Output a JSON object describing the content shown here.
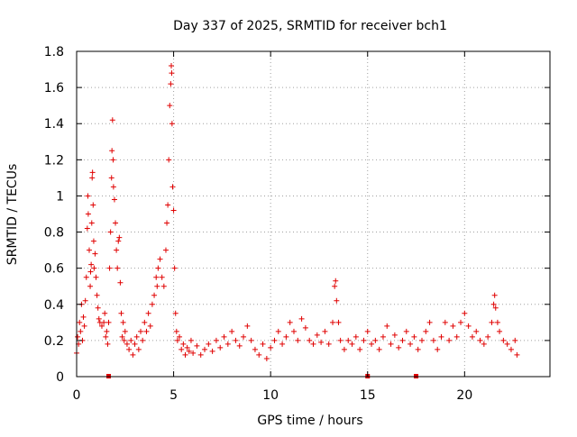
{
  "chart_data": {
    "type": "scatter",
    "title": "Day 337 of 2025, SRMTID for receiver bch1",
    "xlabel": "GPS time / hours",
    "ylabel": "SRMTID / TECUs",
    "xlim": [
      0,
      24.4
    ],
    "ylim": [
      0,
      1.8
    ],
    "xticks": [
      0,
      5,
      10,
      15,
      20
    ],
    "xtick_labels": [
      "0",
      "5",
      "10",
      "15",
      "20"
    ],
    "yticks": [
      0,
      0.2,
      0.4,
      0.6,
      0.8,
      1.0,
      1.2,
      1.4,
      1.6,
      1.8
    ],
    "ytick_labels": [
      "0",
      "0.2",
      "0.4",
      "0.6",
      "0.8",
      "1",
      "1.2",
      "1.4",
      "1.6",
      "1.8"
    ],
    "grid": true,
    "marker": "+",
    "color": "#e00000",
    "zero_markers_x": [
      1.65,
      15.0,
      17.5
    ],
    "series": [
      {
        "name": "SRMTID",
        "points": [
          [
            0.0,
            0.13
          ],
          [
            0.05,
            0.22
          ],
          [
            0.1,
            0.18
          ],
          [
            0.15,
            0.3
          ],
          [
            0.2,
            0.25
          ],
          [
            0.25,
            0.4
          ],
          [
            0.3,
            0.2
          ],
          [
            0.35,
            0.33
          ],
          [
            0.4,
            0.28
          ],
          [
            0.45,
            0.42
          ],
          [
            0.5,
            0.55
          ],
          [
            0.55,
            0.82
          ],
          [
            0.58,
            1.0
          ],
          [
            0.6,
            0.9
          ],
          [
            0.65,
            0.7
          ],
          [
            0.7,
            0.5
          ],
          [
            0.72,
            0.58
          ],
          [
            0.75,
            0.62
          ],
          [
            0.78,
            0.85
          ],
          [
            0.8,
            1.1
          ],
          [
            0.82,
            1.13
          ],
          [
            0.85,
            0.95
          ],
          [
            0.88,
            0.75
          ],
          [
            0.9,
            0.6
          ],
          [
            0.95,
            0.68
          ],
          [
            1.0,
            0.55
          ],
          [
            1.05,
            0.45
          ],
          [
            1.1,
            0.38
          ],
          [
            1.15,
            0.32
          ],
          [
            1.2,
            0.3
          ],
          [
            1.3,
            0.28
          ],
          [
            1.4,
            0.3
          ],
          [
            1.45,
            0.35
          ],
          [
            1.5,
            0.22
          ],
          [
            1.55,
            0.25
          ],
          [
            1.6,
            0.18
          ],
          [
            1.65,
            0.3
          ],
          [
            1.7,
            0.6
          ],
          [
            1.75,
            0.8
          ],
          [
            1.8,
            1.1
          ],
          [
            1.82,
            1.25
          ],
          [
            1.85,
            1.42
          ],
          [
            1.88,
            1.2
          ],
          [
            1.9,
            1.05
          ],
          [
            1.95,
            0.98
          ],
          [
            2.0,
            0.85
          ],
          [
            2.05,
            0.7
          ],
          [
            2.1,
            0.6
          ],
          [
            2.15,
            0.75
          ],
          [
            2.2,
            0.77
          ],
          [
            2.25,
            0.52
          ],
          [
            2.3,
            0.35
          ],
          [
            2.35,
            0.22
          ],
          [
            2.4,
            0.3
          ],
          [
            2.45,
            0.2
          ],
          [
            2.5,
            0.25
          ],
          [
            2.6,
            0.18
          ],
          [
            2.7,
            0.15
          ],
          [
            2.8,
            0.2
          ],
          [
            2.9,
            0.12
          ],
          [
            3.0,
            0.18
          ],
          [
            3.1,
            0.22
          ],
          [
            3.2,
            0.15
          ],
          [
            3.3,
            0.25
          ],
          [
            3.4,
            0.2
          ],
          [
            3.5,
            0.3
          ],
          [
            3.6,
            0.25
          ],
          [
            3.7,
            0.35
          ],
          [
            3.8,
            0.28
          ],
          [
            3.9,
            0.4
          ],
          [
            4.0,
            0.45
          ],
          [
            4.1,
            0.55
          ],
          [
            4.15,
            0.5
          ],
          [
            4.2,
            0.6
          ],
          [
            4.3,
            0.65
          ],
          [
            4.4,
            0.55
          ],
          [
            4.5,
            0.5
          ],
          [
            4.6,
            0.7
          ],
          [
            4.65,
            0.85
          ],
          [
            4.7,
            0.95
          ],
          [
            4.75,
            1.2
          ],
          [
            4.8,
            1.5
          ],
          [
            4.85,
            1.62
          ],
          [
            4.88,
            1.72
          ],
          [
            4.9,
            1.68
          ],
          [
            4.92,
            1.4
          ],
          [
            4.95,
            1.05
          ],
          [
            5.0,
            0.92
          ],
          [
            5.05,
            0.6
          ],
          [
            5.1,
            0.35
          ],
          [
            5.15,
            0.25
          ],
          [
            5.2,
            0.2
          ],
          [
            5.3,
            0.22
          ],
          [
            5.4,
            0.15
          ],
          [
            5.5,
            0.18
          ],
          [
            5.6,
            0.12
          ],
          [
            5.7,
            0.16
          ],
          [
            5.8,
            0.14
          ],
          [
            5.9,
            0.2
          ],
          [
            6.0,
            0.13
          ],
          [
            6.2,
            0.17
          ],
          [
            6.4,
            0.12
          ],
          [
            6.6,
            0.15
          ],
          [
            6.8,
            0.18
          ],
          [
            7.0,
            0.14
          ],
          [
            7.2,
            0.2
          ],
          [
            7.4,
            0.16
          ],
          [
            7.6,
            0.22
          ],
          [
            7.8,
            0.18
          ],
          [
            8.0,
            0.25
          ],
          [
            8.2,
            0.2
          ],
          [
            8.4,
            0.17
          ],
          [
            8.6,
            0.22
          ],
          [
            8.8,
            0.28
          ],
          [
            9.0,
            0.2
          ],
          [
            9.2,
            0.15
          ],
          [
            9.4,
            0.12
          ],
          [
            9.6,
            0.18
          ],
          [
            9.8,
            0.1
          ],
          [
            10.0,
            0.16
          ],
          [
            10.2,
            0.2
          ],
          [
            10.4,
            0.25
          ],
          [
            10.6,
            0.18
          ],
          [
            10.8,
            0.22
          ],
          [
            11.0,
            0.3
          ],
          [
            11.2,
            0.25
          ],
          [
            11.4,
            0.2
          ],
          [
            11.6,
            0.32
          ],
          [
            11.8,
            0.27
          ],
          [
            12.0,
            0.2
          ],
          [
            12.2,
            0.18
          ],
          [
            12.4,
            0.23
          ],
          [
            12.6,
            0.19
          ],
          [
            12.8,
            0.25
          ],
          [
            13.0,
            0.18
          ],
          [
            13.2,
            0.3
          ],
          [
            13.3,
            0.5
          ],
          [
            13.35,
            0.53
          ],
          [
            13.4,
            0.42
          ],
          [
            13.5,
            0.3
          ],
          [
            13.6,
            0.2
          ],
          [
            13.8,
            0.15
          ],
          [
            14.0,
            0.2
          ],
          [
            14.2,
            0.18
          ],
          [
            14.4,
            0.22
          ],
          [
            14.6,
            0.15
          ],
          [
            14.8,
            0.2
          ],
          [
            15.0,
            0.25
          ],
          [
            15.2,
            0.18
          ],
          [
            15.4,
            0.2
          ],
          [
            15.6,
            0.15
          ],
          [
            15.8,
            0.22
          ],
          [
            16.0,
            0.28
          ],
          [
            16.2,
            0.18
          ],
          [
            16.4,
            0.23
          ],
          [
            16.6,
            0.16
          ],
          [
            16.8,
            0.2
          ],
          [
            17.0,
            0.25
          ],
          [
            17.2,
            0.18
          ],
          [
            17.4,
            0.22
          ],
          [
            17.6,
            0.15
          ],
          [
            17.8,
            0.2
          ],
          [
            18.0,
            0.25
          ],
          [
            18.2,
            0.3
          ],
          [
            18.4,
            0.2
          ],
          [
            18.6,
            0.15
          ],
          [
            18.8,
            0.22
          ],
          [
            19.0,
            0.3
          ],
          [
            19.2,
            0.2
          ],
          [
            19.4,
            0.28
          ],
          [
            19.6,
            0.22
          ],
          [
            19.8,
            0.3
          ],
          [
            20.0,
            0.35
          ],
          [
            20.2,
            0.28
          ],
          [
            20.4,
            0.22
          ],
          [
            20.6,
            0.25
          ],
          [
            20.8,
            0.2
          ],
          [
            21.0,
            0.18
          ],
          [
            21.2,
            0.22
          ],
          [
            21.4,
            0.3
          ],
          [
            21.5,
            0.4
          ],
          [
            21.55,
            0.45
          ],
          [
            21.6,
            0.38
          ],
          [
            21.7,
            0.3
          ],
          [
            21.8,
            0.25
          ],
          [
            22.0,
            0.2
          ],
          [
            22.2,
            0.18
          ],
          [
            22.4,
            0.15
          ],
          [
            22.6,
            0.2
          ],
          [
            22.7,
            0.12
          ]
        ]
      }
    ]
  }
}
